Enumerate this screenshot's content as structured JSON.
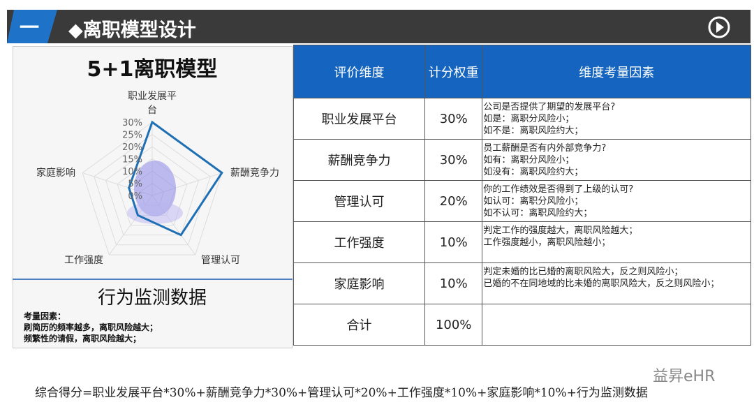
{
  "header": {
    "index": "一",
    "title": "◆离职模型设计"
  },
  "model_title": "5+1离职模型",
  "chart_data": {
    "type": "radar",
    "categories": [
      "职业发展平台",
      "薪酬竞争力",
      "管理认可",
      "工作强度",
      "家庭影响"
    ],
    "values": [
      30,
      30,
      20,
      10,
      10
    ],
    "color": "#1f6fb5",
    "rlim": [
      0,
      30
    ],
    "rticks": [
      {
        "value": 0,
        "label": "0%"
      },
      {
        "value": 5,
        "label": "5%"
      },
      {
        "value": 10,
        "label": "10%"
      },
      {
        "value": 15,
        "label": "15%"
      },
      {
        "value": 20,
        "label": "20%"
      },
      {
        "value": 25,
        "label": "25%"
      },
      {
        "value": 30,
        "label": "30%"
      }
    ],
    "grid": true
  },
  "monitor": {
    "title": "行为监测数据",
    "lines": [
      "考量因素：",
      "刷简历的频率越多，离职风险越大；",
      "频繁性的请假，离职风险越大；"
    ]
  },
  "table": {
    "header": [
      "评价维度",
      "计分权重",
      "维度考量因素"
    ],
    "rows": [
      [
        "职业发展平台",
        "30%",
        [
          "公司是否提供了期望的发展平台?",
          "如是：离职分风险小；",
          "如不是：离职风险约大；"
        ]
      ],
      [
        "薪酬竞争力",
        "30%",
        [
          "员工薪酬是否有内外部竞争力?",
          "如有：离职分风险小；",
          "如没有：离职风险约大；"
        ]
      ],
      [
        "管理认可",
        "20%",
        [
          "你的工作绩效是否得到了上级的认可?",
          "如认可：离职分风险小；",
          "如不认可：离职风险约大；"
        ]
      ],
      [
        "工作强度",
        "10%",
        [
          "判定工作的强度越大，离职风险越大；",
          "工作强度越小，离职风险越小；"
        ]
      ],
      [
        "家庭影响",
        "10%",
        [
          "判定未婚的比已婚的离职风险大，反之则风险小；",
          "已婚的不在同地域的比未婚的离职风险大，反之则风险小；"
        ]
      ],
      [
        "合计",
        "100%",
        []
      ]
    ]
  },
  "formula": "综合得分=职业发展平台*30%+薪酬竞争力*30%+管理认可*20%+工作强度*10%+家庭影响*10%+行为监测数据",
  "watermark": "益昇eHR"
}
